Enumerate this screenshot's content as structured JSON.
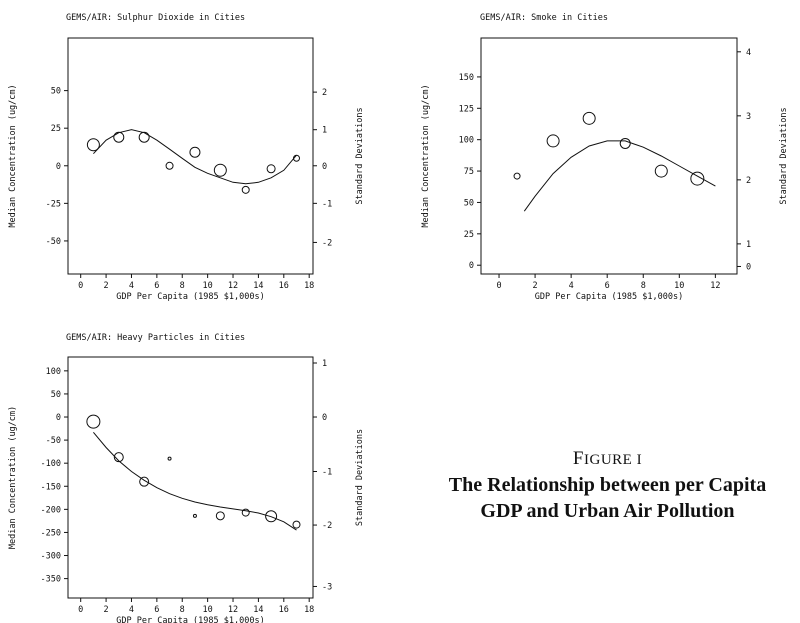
{
  "chart_data": [
    {
      "type": "scatter",
      "title": "GEMS/AIR: Sulphur Dioxide in Cities",
      "xlabel": "GDP Per Capita (1985 $1,000s)",
      "ylabel": "Median Concentration (ug/cm)",
      "y2label": "Standard Deviations",
      "xlim": [
        -1,
        18.3
      ],
      "ylim": [
        -72,
        85
      ],
      "xticks": [
        "0",
        "2",
        "4",
        "6",
        "8",
        "10",
        "12",
        "14",
        "16",
        "18"
      ],
      "xtick_values": [
        0,
        2,
        4,
        6,
        8,
        10,
        12,
        14,
        16,
        18
      ],
      "yticks": [
        "50",
        "25",
        "0",
        "-25",
        "-50"
      ],
      "ytick_values": [
        50,
        25,
        0,
        -25,
        -50
      ],
      "y2ticks": [
        "2",
        "1",
        "0",
        "-1",
        "-2"
      ],
      "y2tick_values": [
        49,
        24,
        0,
        -25,
        -51
      ],
      "points": [
        {
          "x": 1,
          "y": 14,
          "size": 6
        },
        {
          "x": 3,
          "y": 19,
          "size": 5
        },
        {
          "x": 5,
          "y": 19,
          "size": 5
        },
        {
          "x": 7,
          "y": 0,
          "size": 3.5
        },
        {
          "x": 9,
          "y": 9,
          "size": 5
        },
        {
          "x": 11,
          "y": -3,
          "size": 6
        },
        {
          "x": 13,
          "y": -16,
          "size": 3.5
        },
        {
          "x": 15,
          "y": -2,
          "size": 4
        },
        {
          "x": 17,
          "y": 5,
          "size": 3
        }
      ],
      "curve": [
        [
          1,
          8
        ],
        [
          2,
          17
        ],
        [
          3,
          22
        ],
        [
          4,
          24
        ],
        [
          5,
          22
        ],
        [
          6,
          17
        ],
        [
          7,
          11
        ],
        [
          8,
          5
        ],
        [
          9,
          -1
        ],
        [
          10,
          -5
        ],
        [
          11,
          -8
        ],
        [
          12,
          -11
        ],
        [
          13,
          -12
        ],
        [
          14,
          -11
        ],
        [
          15,
          -8
        ],
        [
          16,
          -3
        ],
        [
          17,
          7
        ]
      ],
      "grid": false
    },
    {
      "type": "scatter",
      "title": "GEMS/AIR: Smoke in Cities",
      "xlabel": "GDP Per Capita (1985 $1,000s)",
      "ylabel": "Median Concentration (ug/cm)",
      "y2label": "Standard Deviations",
      "xlim": [
        -1,
        13.2
      ],
      "ylim": [
        -7,
        181
      ],
      "xticks": [
        "0",
        "2",
        "4",
        "6",
        "8",
        "10",
        "12"
      ],
      "xtick_values": [
        0,
        2,
        4,
        6,
        8,
        10,
        12
      ],
      "yticks": [
        "150",
        "125",
        "100",
        "75",
        "50",
        "25",
        "0"
      ],
      "ytick_values": [
        150,
        125,
        100,
        75,
        50,
        25,
        0
      ],
      "y2ticks": [
        "4",
        "3",
        "2",
        "1",
        "0"
      ],
      "y2tick_values": [
        170,
        119,
        68,
        17,
        -1
      ],
      "points": [
        {
          "x": 1,
          "y": 71,
          "size": 3
        },
        {
          "x": 3,
          "y": 99,
          "size": 6
        },
        {
          "x": 5,
          "y": 117,
          "size": 6
        },
        {
          "x": 7,
          "y": 97,
          "size": 5
        },
        {
          "x": 9,
          "y": 75,
          "size": 6
        },
        {
          "x": 11,
          "y": 69,
          "size": 6.5
        }
      ],
      "curve": [
        [
          1.4,
          43
        ],
        [
          2,
          55
        ],
        [
          3,
          73
        ],
        [
          4,
          86
        ],
        [
          5,
          95
        ],
        [
          6,
          99
        ],
        [
          7,
          99
        ],
        [
          8,
          94
        ],
        [
          9,
          87
        ],
        [
          10,
          79
        ],
        [
          11,
          71
        ],
        [
          12,
          63
        ]
      ],
      "grid": false
    },
    {
      "type": "scatter",
      "title": "GEMS/AIR: Heavy Particles in Cities",
      "xlabel": "GDP Per Capita (1985 $1,000s)",
      "ylabel": "Median Concentration (ug/cm)",
      "y2label": "Standard Deviations",
      "xlim": [
        -1,
        18.3
      ],
      "ylim": [
        -392,
        130
      ],
      "xticks": [
        "0",
        "2",
        "4",
        "6",
        "8",
        "10",
        "12",
        "14",
        "16",
        "18"
      ],
      "xtick_values": [
        0,
        2,
        4,
        6,
        8,
        10,
        12,
        14,
        16,
        18
      ],
      "yticks": [
        "100",
        "50",
        "0",
        "-50",
        "-100",
        "-150",
        "-200",
        "-250",
        "-300",
        "-350"
      ],
      "ytick_values": [
        100,
        50,
        0,
        -50,
        -100,
        -150,
        -200,
        -250,
        -300,
        -350
      ],
      "y2ticks": [
        "1",
        "0",
        "-1",
        "-2",
        "-3"
      ],
      "y2tick_values": [
        117,
        0,
        -118,
        -234,
        -367
      ],
      "points": [
        {
          "x": 1,
          "y": -10,
          "size": 6.5
        },
        {
          "x": 3,
          "y": -87,
          "size": 4.5
        },
        {
          "x": 5,
          "y": -140,
          "size": 4.5
        },
        {
          "x": 7,
          "y": -90,
          "size": 1.5
        },
        {
          "x": 9,
          "y": -214,
          "size": 1.5
        },
        {
          "x": 11,
          "y": -214,
          "size": 4
        },
        {
          "x": 13,
          "y": -207,
          "size": 3.5
        },
        {
          "x": 15,
          "y": -215,
          "size": 5.5
        },
        {
          "x": 17,
          "y": -233,
          "size": 3.5
        }
      ],
      "curve": [
        [
          1,
          -33
        ],
        [
          2,
          -66
        ],
        [
          3,
          -95
        ],
        [
          4,
          -118
        ],
        [
          5,
          -137
        ],
        [
          6,
          -153
        ],
        [
          7,
          -166
        ],
        [
          8,
          -176
        ],
        [
          9,
          -184
        ],
        [
          10,
          -190
        ],
        [
          11,
          -195
        ],
        [
          12,
          -199
        ],
        [
          13,
          -203
        ],
        [
          14,
          -208
        ],
        [
          15,
          -216
        ],
        [
          16,
          -227
        ],
        [
          17,
          -245
        ]
      ],
      "grid": false
    }
  ],
  "caption": {
    "figure_label_first": "F",
    "figure_label_rest": "IGURE I",
    "line1": "The Relationship between per Capita",
    "line2": "GDP and Urban Air Pollution"
  }
}
